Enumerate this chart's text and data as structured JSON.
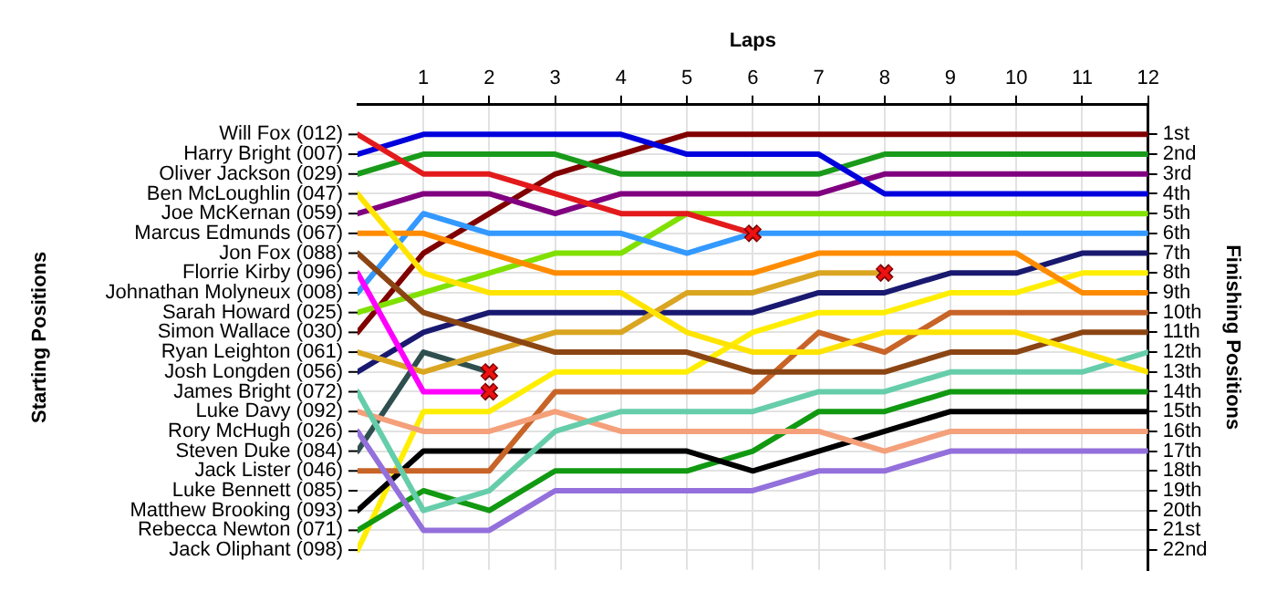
{
  "chart_data": {
    "type": "line",
    "xlabel": "Laps",
    "ylabel": "Finishing Positions",
    "x": [
      0,
      1,
      2,
      3,
      4,
      5,
      6,
      7,
      8,
      9,
      10,
      11,
      12
    ],
    "xlim": [
      0,
      12
    ],
    "xticks": [
      1,
      2,
      3,
      4,
      5,
      6,
      7,
      8,
      9,
      10,
      11,
      12
    ],
    "ylim": [
      23,
      -0.5
    ],
    "yticks": [
      {
        "value": 1,
        "label": "1st"
      },
      {
        "value": 2,
        "label": "2nd"
      },
      {
        "value": 3,
        "label": "3rd"
      },
      {
        "value": 4,
        "label": "4th"
      },
      {
        "value": 5,
        "label": "5th"
      },
      {
        "value": 6,
        "label": "6th"
      },
      {
        "value": 7,
        "label": "7th"
      },
      {
        "value": 8,
        "label": "8th"
      },
      {
        "value": 9,
        "label": "9th"
      },
      {
        "value": 10,
        "label": "10th"
      },
      {
        "value": 11,
        "label": "11th"
      },
      {
        "value": 12,
        "label": "12th"
      },
      {
        "value": 13,
        "label": "13th"
      },
      {
        "value": 14,
        "label": "14th"
      },
      {
        "value": 15,
        "label": "15th"
      },
      {
        "value": 16,
        "label": "16th"
      },
      {
        "value": 17,
        "label": "17th"
      },
      {
        "value": 18,
        "label": "18th"
      },
      {
        "value": 19,
        "label": "19th"
      },
      {
        "value": 20,
        "label": "20th"
      },
      {
        "value": 21,
        "label": "21st"
      },
      {
        "value": 22,
        "label": "22nd"
      }
    ],
    "annotations": [
      "Starting Positions",
      "Will Fox (012)",
      "Harry Bright (007)",
      "Oliver Jackson (029)",
      "Ben McLoughlin (047)",
      "Joe McKernan (059)",
      "Marcus Edmunds (067)",
      "Jon Fox (088)",
      "Florrie Kirby (096)",
      "Johnathan Molyneux (008)",
      "Sarah Howard (025)",
      "Simon Wallace (030)",
      "Ryan Leighton (061)",
      "Josh Longden (056)",
      "James Bright (072)",
      "Luke Davy (092)",
      "Rory McHugh (026)",
      "Steven Duke (084)",
      "Jack Lister (046)",
      "Luke Bennett (085)",
      "Matthew Brooking (093)",
      "Rebecca Newton (071)",
      "Jack Oliphant (098)"
    ],
    "grid": true,
    "legend": false,
    "marker": "none",
    "series": [
      {
        "color": "#e31a1c",
        "values": [
          1,
          3,
          3,
          4,
          5,
          5,
          6,
          null,
          null,
          null,
          null,
          null,
          null
        ]
      },
      {
        "color": "#0000dd",
        "values": [
          2,
          1,
          1,
          1,
          1,
          2,
          2,
          2,
          4,
          4,
          4,
          4,
          4
        ]
      },
      {
        "color": "#1a9a1a",
        "values": [
          3,
          2,
          2,
          2,
          3,
          3,
          3,
          3,
          2,
          2,
          2,
          2,
          2
        ]
      },
      {
        "color": "#ffe400",
        "values": [
          4,
          8,
          9,
          9,
          9,
          11,
          12,
          12,
          11,
          11,
          11,
          12,
          13
        ]
      },
      {
        "color": "#800080",
        "values": [
          5,
          4,
          4,
          5,
          4,
          4,
          4,
          4,
          3,
          3,
          3,
          3,
          3
        ]
      },
      {
        "color": "#ff8c00",
        "values": [
          6,
          6,
          7,
          8,
          8,
          8,
          8,
          7,
          7,
          7,
          7,
          9,
          9
        ]
      },
      {
        "color": "#8b4513",
        "values": [
          7,
          10,
          11,
          12,
          12,
          12,
          13,
          13,
          13,
          12,
          12,
          11,
          11
        ]
      },
      {
        "color": "#ff00ff",
        "values": [
          8,
          14,
          14,
          null,
          null,
          null,
          null,
          null,
          null,
          null,
          null,
          null,
          null
        ]
      },
      {
        "color": "#3399ff",
        "values": [
          9,
          5,
          6,
          6,
          6,
          7,
          6,
          6,
          6,
          6,
          6,
          6,
          6
        ]
      },
      {
        "color": "#80e000",
        "values": [
          10,
          9,
          8,
          7,
          7,
          5,
          5,
          5,
          5,
          5,
          5,
          5,
          5
        ]
      },
      {
        "color": "#800000",
        "values": [
          11,
          7,
          5,
          3,
          2,
          1,
          1,
          1,
          1,
          1,
          1,
          1,
          1
        ]
      },
      {
        "color": "#daa520",
        "values": [
          12,
          13,
          12,
          11,
          11,
          9,
          9,
          8,
          8,
          null,
          null,
          null,
          null
        ]
      },
      {
        "color": "#191970",
        "values": [
          13,
          11,
          10,
          10,
          10,
          10,
          10,
          9,
          9,
          8,
          8,
          7,
          7
        ]
      },
      {
        "color": "#66cdaa",
        "values": [
          14,
          20,
          19,
          16,
          15,
          15,
          15,
          14,
          14,
          13,
          13,
          13,
          12
        ]
      },
      {
        "color": "#f4a07a",
        "values": [
          15,
          16,
          16,
          15,
          16,
          16,
          16,
          16,
          17,
          16,
          16,
          16,
          16
        ]
      },
      {
        "color": "#9370db",
        "values": [
          16,
          21,
          21,
          19,
          19,
          19,
          19,
          18,
          18,
          17,
          17,
          17,
          17
        ]
      },
      {
        "color": "#2f4f4f",
        "values": [
          17,
          12,
          13,
          null,
          null,
          null,
          null,
          null,
          null,
          null,
          null,
          null,
          null
        ]
      },
      {
        "color": "#c86428",
        "values": [
          18,
          18,
          18,
          14,
          14,
          14,
          14,
          11,
          12,
          10,
          10,
          10,
          10
        ]
      },
      {
        "color": "#000000",
        "values": [
          20,
          17,
          17,
          17,
          17,
          17,
          18,
          17,
          16,
          15,
          15,
          15,
          15
        ]
      },
      {
        "color": "#119911",
        "values": [
          21,
          19,
          20,
          18,
          18,
          18,
          17,
          15,
          15,
          14,
          14,
          14,
          14
        ]
      },
      {
        "color": "#ffee00",
        "values": [
          22,
          15,
          15,
          13,
          13,
          13,
          11,
          10,
          10,
          9,
          9,
          8,
          8
        ]
      },
      {
        "type": "scatter",
        "marker": "cross",
        "color": "#ee1111",
        "x": [
          6,
          8,
          2,
          2
        ],
        "values": [
          6,
          8,
          13,
          14
        ]
      }
    ]
  }
}
